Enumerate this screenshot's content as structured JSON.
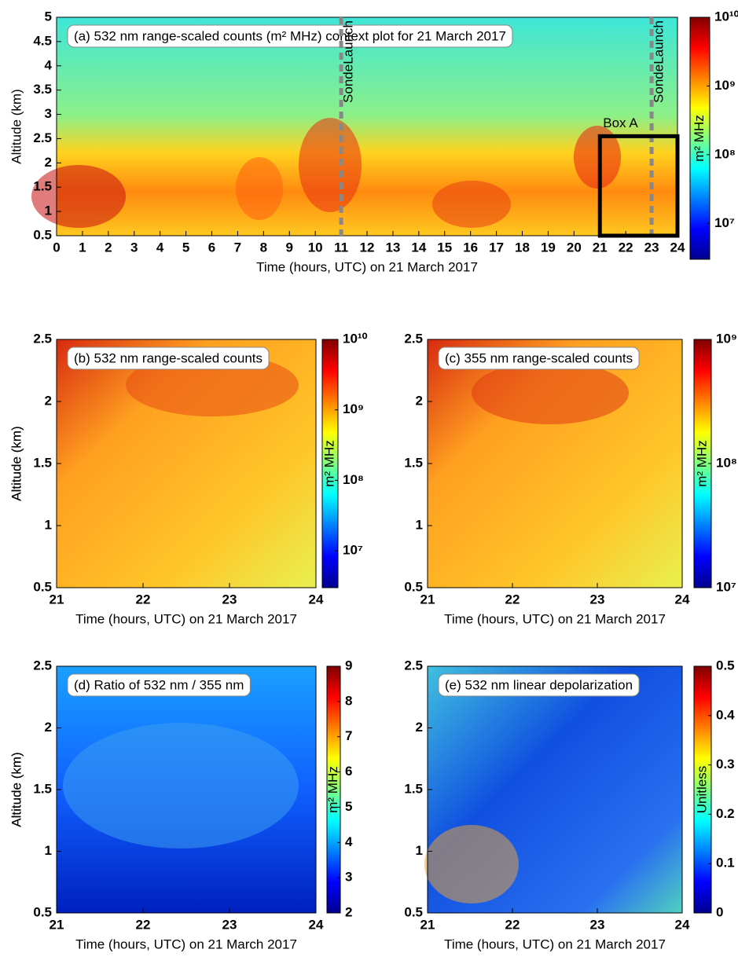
{
  "chart_data": [
    {
      "type": "heatmap",
      "title": "(a) 532 nm range-scaled counts (m² MHz) context plot for 21 March 2017",
      "xlabel": "Time (hours, UTC) on 21 March 2017",
      "ylabel": "Altitude (km)",
      "xlim": [
        0,
        24
      ],
      "xticks": [
        0,
        1,
        2,
        3,
        4,
        5,
        6,
        7,
        8,
        9,
        10,
        11,
        12,
        13,
        14,
        15,
        16,
        17,
        18,
        19,
        20,
        21,
        22,
        23,
        24
      ],
      "ylim": [
        0.5,
        5
      ],
      "yticks": [
        0.5,
        1,
        1.5,
        2,
        2.5,
        3,
        3.5,
        4,
        4.5,
        5
      ],
      "colorbar": {
        "label": "m² MHz",
        "log": true,
        "lim": [
          3000000,
          10000000000
        ],
        "ticks": [
          {
            "value": 10000000,
            "label": "10⁷"
          },
          {
            "value": 100000000,
            "label": "10⁸"
          },
          {
            "value": 1000000000,
            "label": "10⁹"
          },
          {
            "value": 10000000000,
            "label": "10¹⁰"
          }
        ]
      },
      "annotations": [
        {
          "text": "SondeLaunch",
          "x": 11
        },
        {
          "text": "SondeLaunch",
          "x": 23
        }
      ],
      "box": {
        "label": "Box A",
        "xlim": [
          21,
          24
        ],
        "ylim": [
          0.5,
          2.55
        ]
      }
    },
    {
      "type": "heatmap",
      "title": "(b) 532 nm range-scaled counts",
      "xlabel": "Time (hours, UTC) on 21 March 2017",
      "ylabel": "Altitude (km)",
      "xlim": [
        21,
        24
      ],
      "xticks": [
        21,
        22,
        23,
        24
      ],
      "ylim": [
        0.5,
        2.5
      ],
      "yticks": [
        0.5,
        1,
        1.5,
        2,
        2.5
      ],
      "colorbar": {
        "label": "m² MHz",
        "log": true,
        "lim": [
          3000000,
          10000000000
        ],
        "ticks": [
          {
            "value": 10000000,
            "label": "10⁷"
          },
          {
            "value": 100000000,
            "label": "10⁸"
          },
          {
            "value": 1000000000,
            "label": "10⁹"
          },
          {
            "value": 10000000000,
            "label": "10¹⁰"
          }
        ]
      }
    },
    {
      "type": "heatmap",
      "title": "(c) 355 nm range-scaled counts",
      "xlabel": "Time (hours, UTC) on 21 March 2017",
      "ylabel": "Altitude (km)",
      "xlim": [
        21,
        24
      ],
      "xticks": [
        21,
        22,
        23,
        24
      ],
      "ylim": [
        0.5,
        2.5
      ],
      "yticks": [
        0.5,
        1,
        1.5,
        2,
        2.5
      ],
      "colorbar": {
        "label": "m² MHz",
        "log": true,
        "lim": [
          10000000,
          1000000000
        ],
        "ticks": [
          {
            "value": 10000000,
            "label": "10⁷"
          },
          {
            "value": 100000000,
            "label": "10⁸"
          },
          {
            "value": 1000000000,
            "label": "10⁹"
          }
        ]
      }
    },
    {
      "type": "heatmap",
      "title": "(d) Ratio of 532 nm / 355 nm",
      "xlabel": "Time (hours, UTC) on 21 March 2017",
      "ylabel": "Altitude (km)",
      "xlim": [
        21,
        24
      ],
      "xticks": [
        21,
        22,
        23,
        24
      ],
      "ylim": [
        0.5,
        2.5
      ],
      "yticks": [
        0.5,
        1,
        1.5,
        2,
        2.5
      ],
      "colorbar": {
        "label": "m² MHz",
        "log": false,
        "lim": [
          2,
          9
        ],
        "ticks": [
          2,
          3,
          4,
          5,
          6,
          7,
          8,
          9
        ]
      }
    },
    {
      "type": "heatmap",
      "title": "(e) 532 nm linear depolarization",
      "xlabel": "Time (hours, UTC) on 21 March 2017",
      "ylabel": "Altitude (km)",
      "xlim": [
        21,
        24
      ],
      "xticks": [
        21,
        22,
        23,
        24
      ],
      "ylim": [
        0.5,
        2.5
      ],
      "yticks": [
        0.5,
        1,
        1.5,
        2,
        2.5
      ],
      "colorbar": {
        "label": "Unitless",
        "log": false,
        "lim": [
          0,
          0.5
        ],
        "ticks": [
          0,
          0.1,
          0.2,
          0.3,
          0.4,
          0.5
        ]
      }
    }
  ]
}
